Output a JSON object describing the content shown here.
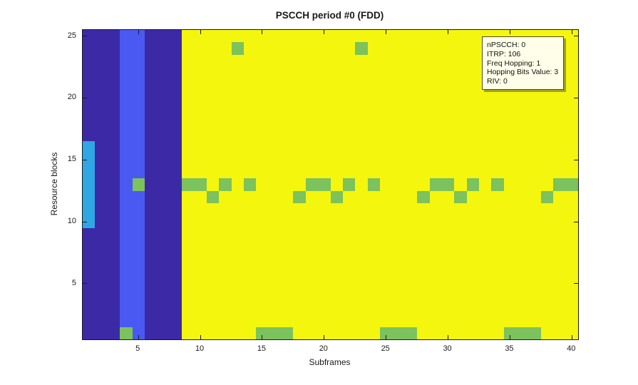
{
  "figure": {
    "title": "PSCCH period #0 (FDD)"
  },
  "chart_data": {
    "type": "heatmap",
    "title": "PSCCH period #0 (FDD)",
    "xlabel": "Subframes",
    "ylabel": "Resource blocks",
    "x_range": [
      0.5,
      40.5
    ],
    "y_range": [
      0.5,
      25.5
    ],
    "x_ticks": [
      5,
      10,
      15,
      20,
      25,
      30,
      35,
      40
    ],
    "y_ticks": [
      5,
      10,
      15,
      20,
      25
    ],
    "grid": "off",
    "colors": {
      "yellow_background": "#F5F60D",
      "dark_blue_pool": "#3C29A6",
      "light_blue_pool": "#4A59F1",
      "cyan_rb_pool": "#2FA7E4",
      "green_pscch": "#7CC25D",
      "axis": "#1a1a1a"
    },
    "regions": [
      {
        "name": "value-background-yellow",
        "color": "yellow_background",
        "x": [
          0.5,
          40.5
        ],
        "y": [
          0.5,
          25.5
        ]
      },
      {
        "name": "pscch-period-dark-blue",
        "color": "dark_blue_pool",
        "x": [
          0.5,
          8.5
        ],
        "y": [
          0.5,
          25.5
        ]
      },
      {
        "name": "pscch-subframe-pool-light-blue",
        "color": "light_blue_pool",
        "x": [
          3.5,
          5.5
        ],
        "y": [
          0.5,
          25.5
        ]
      },
      {
        "name": "pscch-resource-block-pool-cyan",
        "color": "cyan_rb_pool",
        "x": [
          0.5,
          1.5
        ],
        "y": [
          9.5,
          16.5
        ]
      }
    ],
    "green_cells": [
      [
        4,
        1
      ],
      [
        15,
        1
      ],
      [
        16,
        1
      ],
      [
        17,
        1
      ],
      [
        25,
        1
      ],
      [
        26,
        1
      ],
      [
        27,
        1
      ],
      [
        35,
        1
      ],
      [
        36,
        1
      ],
      [
        37,
        1
      ],
      [
        11,
        12
      ],
      [
        18,
        12
      ],
      [
        21,
        12
      ],
      [
        28,
        12
      ],
      [
        31,
        12
      ],
      [
        38,
        12
      ],
      [
        5,
        13
      ],
      [
        9,
        13
      ],
      [
        10,
        13
      ],
      [
        12,
        13
      ],
      [
        14,
        13
      ],
      [
        19,
        13
      ],
      [
        20,
        13
      ],
      [
        22,
        13
      ],
      [
        24,
        13
      ],
      [
        29,
        13
      ],
      [
        30,
        13
      ],
      [
        32,
        13
      ],
      [
        34,
        13
      ],
      [
        39,
        13
      ],
      [
        40,
        13
      ],
      [
        13,
        24
      ],
      [
        23,
        24
      ]
    ]
  },
  "infobox": {
    "lines": [
      "nPSCCH: 0",
      "ITRP: 106",
      "Freq Hopping: 1",
      "Hopping Bits Value: 3",
      "RIV: 0"
    ]
  }
}
